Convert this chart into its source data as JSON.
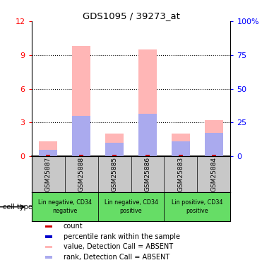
{
  "title": "GDS1095 / 39273_at",
  "samples": [
    "GSM25887",
    "GSM25888",
    "GSM25885",
    "GSM25886",
    "GSM25883",
    "GSM25884"
  ],
  "bar_pink_heights": [
    1.3,
    9.8,
    2.0,
    9.5,
    2.0,
    3.2
  ],
  "bar_blue_heights": [
    0.6,
    3.6,
    1.2,
    3.8,
    1.3,
    2.1
  ],
  "bar_red_heights": [
    0.12,
    0.12,
    0.12,
    0.12,
    0.12,
    0.12
  ],
  "ylim_left": [
    0,
    12
  ],
  "ylim_right": [
    0,
    100
  ],
  "yticks_left": [
    0,
    3,
    6,
    9,
    12
  ],
  "ytick_labels_left": [
    "0",
    "3",
    "6",
    "9",
    "12"
  ],
  "yticks_right": [
    0,
    25,
    50,
    75,
    100
  ],
  "ytick_labels_right": [
    "0",
    "25",
    "50",
    "75",
    "100%"
  ],
  "bar_width": 0.55,
  "pink_color": "#FFB6B6",
  "blue_color": "#AAAAEE",
  "red_color": "#CC0000",
  "bg_label": "#C8C8C8",
  "green_color": "#66DD66",
  "groups": [
    {
      "label": "Lin negative, CD34\nnegative",
      "cols": [
        0,
        1
      ]
    },
    {
      "label": "Lin negative, CD34\npositive",
      "cols": [
        2,
        3
      ]
    },
    {
      "label": "Lin positive, CD34\npositive",
      "cols": [
        4,
        5
      ]
    }
  ],
  "legend_items": [
    {
      "color": "#CC0000",
      "label": "count"
    },
    {
      "color": "#0000CC",
      "label": "percentile rank within the sample"
    },
    {
      "color": "#FFB6B6",
      "label": "value, Detection Call = ABSENT"
    },
    {
      "color": "#AAAAEE",
      "label": "rank, Detection Call = ABSENT"
    }
  ]
}
